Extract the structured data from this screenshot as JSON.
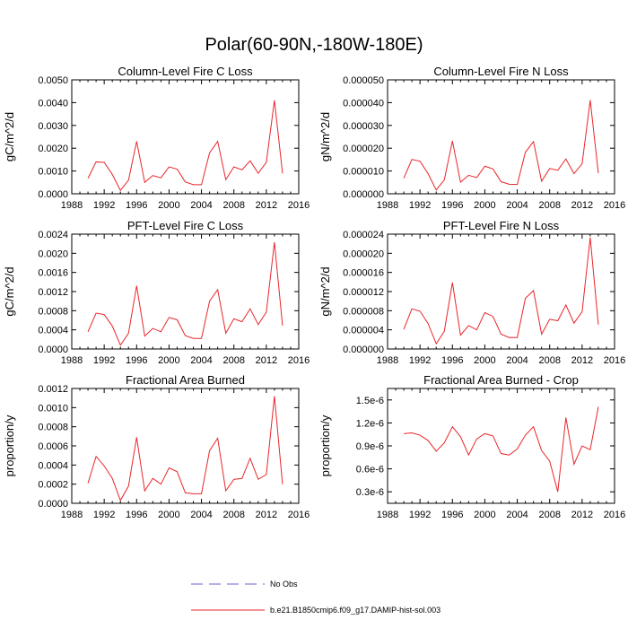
{
  "page_title": "Polar(60-90N,-180W-180E)",
  "legend": [
    {
      "label": "No Obs",
      "color": "#6666cc",
      "style": "dashed"
    },
    {
      "label": "b.e21.B1850cmip6.f09_g17.DAMIP-hist-sol.003",
      "color": "#e8262b",
      "style": "solid"
    }
  ],
  "chart_data": [
    {
      "type": "line",
      "title": "Column-Level Fire C Loss",
      "ylabel": "gC/m^2/d",
      "xlim": [
        1988,
        2016
      ],
      "ylim": [
        0,
        0.005
      ],
      "xticks": [
        1988,
        1992,
        1996,
        2000,
        2004,
        2008,
        2012,
        2016
      ],
      "yticks": [
        0,
        0.001,
        0.002,
        0.003,
        0.004,
        0.005
      ],
      "ytick_labels": [
        "0.0000",
        "0.0010",
        "0.0020",
        "0.0030",
        "0.0040",
        "0.0050"
      ],
      "x": [
        1990,
        1991,
        1992,
        1993,
        1994,
        1995,
        1996,
        1997,
        1998,
        1999,
        2000,
        2001,
        2002,
        2003,
        2004,
        2005,
        2006,
        2007,
        2008,
        2009,
        2010,
        2011,
        2012,
        2013,
        2014
      ],
      "series": [
        {
          "color": "#e8262b",
          "values": [
            0.00068,
            0.0014,
            0.00138,
            0.00085,
            0.00015,
            0.0006,
            0.0023,
            0.0005,
            0.0008,
            0.0007,
            0.00118,
            0.00108,
            0.00052,
            0.0004,
            0.0004,
            0.0018,
            0.0023,
            0.00062,
            0.00118,
            0.00105,
            0.00145,
            0.0009,
            0.00138,
            0.0041,
            0.0009
          ]
        }
      ]
    },
    {
      "type": "line",
      "title": "Column-Level Fire N Loss",
      "ylabel": "gN/m^2/d",
      "xlim": [
        1988,
        2016
      ],
      "ylim": [
        0,
        5e-05
      ],
      "xticks": [
        1988,
        1992,
        1996,
        2000,
        2004,
        2008,
        2012,
        2016
      ],
      "yticks": [
        0,
        1e-05,
        2e-05,
        3e-05,
        4e-05,
        5e-05
      ],
      "ytick_labels": [
        "0.000000",
        "0.000010",
        "0.000020",
        "0.000030",
        "0.000040",
        "0.000050"
      ],
      "x": [
        1990,
        1991,
        1992,
        1993,
        1994,
        1995,
        1996,
        1997,
        1998,
        1999,
        2000,
        2001,
        2002,
        2003,
        2004,
        2005,
        2006,
        2007,
        2008,
        2009,
        2010,
        2011,
        2012,
        2013,
        2014
      ],
      "series": [
        {
          "color": "#e8262b",
          "values": [
            6.8e-06,
            1.51e-05,
            1.43e-05,
            8.8e-06,
            1.7e-06,
            6.1e-06,
            2.32e-05,
            5.1e-06,
            8.1e-06,
            7.1e-06,
            1.21e-05,
            1.09e-05,
            5.3e-06,
            4.2e-06,
            4.1e-06,
            1.82e-05,
            2.29e-05,
            5.5e-06,
            1.11e-05,
            1.03e-05,
            1.53e-05,
            8.8e-06,
            1.32e-05,
            4.11e-05,
            9.1e-06
          ]
        }
      ]
    },
    {
      "type": "line",
      "title": "PFT-Level Fire C Loss",
      "ylabel": "gC/m^2/d",
      "xlim": [
        1988,
        2016
      ],
      "ylim": [
        0,
        0.0024
      ],
      "xticks": [
        1988,
        1992,
        1996,
        2000,
        2004,
        2008,
        2012,
        2016
      ],
      "yticks": [
        0,
        0.0004,
        0.0008,
        0.0012,
        0.0016,
        0.002,
        0.0024
      ],
      "ytick_labels": [
        "0.0000",
        "0.0004",
        "0.0008",
        "0.0012",
        "0.0016",
        "0.0020",
        "0.0024"
      ],
      "x": [
        1990,
        1991,
        1992,
        1993,
        1994,
        1995,
        1996,
        1997,
        1998,
        1999,
        2000,
        2001,
        2002,
        2003,
        2004,
        2005,
        2006,
        2007,
        2008,
        2009,
        2010,
        2011,
        2012,
        2013,
        2014
      ],
      "series": [
        {
          "color": "#e8262b",
          "values": [
            0.00036,
            0.00075,
            0.00072,
            0.00048,
            8e-05,
            0.00033,
            0.00132,
            0.00027,
            0.00043,
            0.00036,
            0.00066,
            0.00061,
            0.00028,
            0.00022,
            0.00022,
            0.001,
            0.00124,
            0.00033,
            0.00063,
            0.00057,
            0.00084,
            0.00051,
            0.00077,
            0.00223,
            0.00049
          ]
        }
      ]
    },
    {
      "type": "line",
      "title": "PFT-Level Fire N Loss",
      "ylabel": "gN/m^2/d",
      "xlim": [
        1988,
        2016
      ],
      "ylim": [
        0,
        2.4e-05
      ],
      "xticks": [
        1988,
        1992,
        1996,
        2000,
        2004,
        2008,
        2012,
        2016
      ],
      "yticks": [
        0,
        4e-06,
        8e-06,
        1.2e-05,
        1.6e-05,
        2e-05,
        2.4e-05
      ],
      "ytick_labels": [
        "0.000000",
        "0.000004",
        "0.000008",
        "0.000012",
        "0.000016",
        "0.000020",
        "0.000024"
      ],
      "x": [
        1990,
        1991,
        1992,
        1993,
        1994,
        1995,
        1996,
        1997,
        1998,
        1999,
        2000,
        2001,
        2002,
        2003,
        2004,
        2005,
        2006,
        2007,
        2008,
        2009,
        2010,
        2011,
        2012,
        2013,
        2014
      ],
      "series": [
        {
          "color": "#e8262b",
          "values": [
            4.1e-06,
            8.4e-06,
            7.9e-06,
            5.3e-06,
            1.1e-06,
            3.7e-06,
            1.39e-05,
            2.9e-06,
            4.9e-06,
            4e-06,
            7.6e-06,
            6.8e-06,
            3.1e-06,
            2.4e-06,
            2.4e-06,
            1.06e-05,
            1.22e-05,
            3.1e-06,
            6.2e-06,
            5.9e-06,
            9.2e-06,
            5.4e-06,
            7.8e-06,
            2.33e-05,
            5.1e-06
          ]
        }
      ]
    },
    {
      "type": "line",
      "title": "Fractional Area Burned",
      "ylabel": "proportion/y",
      "xlim": [
        1988,
        2016
      ],
      "ylim": [
        0,
        0.0012
      ],
      "xticks": [
        1988,
        1992,
        1996,
        2000,
        2004,
        2008,
        2012,
        2016
      ],
      "yticks": [
        0,
        0.0002,
        0.0004,
        0.0006,
        0.0008,
        0.001,
        0.0012
      ],
      "ytick_labels": [
        "0.0000",
        "0.0002",
        "0.0004",
        "0.0006",
        "0.0008",
        "0.0010",
        "0.0012"
      ],
      "x": [
        1990,
        1991,
        1992,
        1993,
        1994,
        1995,
        1996,
        1997,
        1998,
        1999,
        2000,
        2001,
        2002,
        2003,
        2004,
        2005,
        2006,
        2007,
        2008,
        2009,
        2010,
        2011,
        2012,
        2013,
        2014
      ],
      "series": [
        {
          "color": "#e8262b",
          "values": [
            0.00021,
            0.00049,
            0.00039,
            0.00026,
            3e-05,
            0.00018,
            0.00069,
            0.00013,
            0.00026,
            0.0002,
            0.00037,
            0.00033,
            0.00011,
            0.0001,
            0.0001,
            0.00055,
            0.00068,
            0.00013,
            0.00025,
            0.00026,
            0.00047,
            0.00025,
            0.0003,
            0.00112,
            0.0002
          ]
        }
      ]
    },
    {
      "type": "line",
      "title": "Fractional Area Burned - Crop",
      "ylabel": "proportion/y",
      "xlim": [
        1988,
        2016
      ],
      "ylim": [
        1.5e-07,
        1.65e-06
      ],
      "xticks": [
        1988,
        1992,
        1996,
        2000,
        2004,
        2008,
        2012,
        2016
      ],
      "yticks": [
        3e-07,
        6e-07,
        9e-07,
        1.2e-06,
        1.5e-06
      ],
      "ytick_labels": [
        "0.3e-6",
        "0.6e-6",
        "0.9e-6",
        "1.2e-6",
        "1.5e-6"
      ],
      "x": [
        1990,
        1991,
        1992,
        1993,
        1994,
        1995,
        1996,
        1997,
        1998,
        1999,
        2000,
        2001,
        2002,
        2003,
        2004,
        2005,
        2006,
        2007,
        2008,
        2009,
        2010,
        2011,
        2012,
        2013,
        2014
      ],
      "series": [
        {
          "color": "#e8262b",
          "values": [
            1.06e-06,
            1.07e-06,
            1.04e-06,
            9.7e-07,
            8.3e-07,
            9.4e-07,
            1.15e-06,
            1.02e-06,
            7.8e-07,
            9.9e-07,
            1.06e-06,
            1.03e-06,
            8e-07,
            7.8e-07,
            8.6e-07,
            1.04e-06,
            1.15e-06,
            8.4e-07,
            7e-07,
            3e-07,
            1.27e-06,
            6.6e-07,
            9e-07,
            8.5e-07,
            1.41e-06
          ]
        }
      ]
    }
  ]
}
